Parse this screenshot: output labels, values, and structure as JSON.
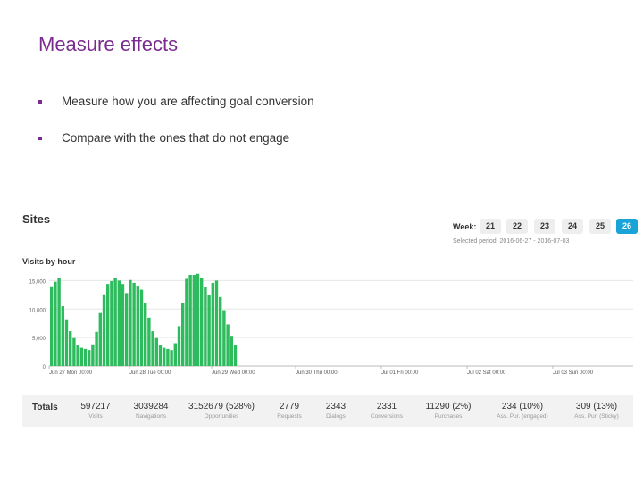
{
  "slide": {
    "title": "Measure effects",
    "bullets": [
      "Measure how you are affecting goal conversion",
      "Compare with the ones that do not engage"
    ]
  },
  "dashboard": {
    "title": "Sites",
    "week_label": "Week:",
    "weeks": [
      "21",
      "22",
      "23",
      "24",
      "25",
      "26"
    ],
    "active_week": "26",
    "selected_period": "Selected period: 2016-06-27 - 2016-07-03",
    "chart_title": "Visits by hour",
    "accent_color": "#1aa3d6",
    "bar_color": "#2dbb5d",
    "totals_label": "Totals",
    "totals": [
      {
        "value": "597217",
        "label": "Visits"
      },
      {
        "value": "3039284",
        "label": "Navigations"
      },
      {
        "value": "3152679 (528%)",
        "label": "Opportunities"
      },
      {
        "value": "2779",
        "label": "Requests"
      },
      {
        "value": "2343",
        "label": "Dialogs"
      },
      {
        "value": "2331",
        "label": "Conversions"
      },
      {
        "value": "11290 (2%)",
        "label": "Purchases"
      },
      {
        "value": "234 (10%)",
        "label": "Ass. Pur. (engaged)"
      },
      {
        "value": "309 (13%)",
        "label": "Ass. Pur. (Sticky)"
      }
    ]
  },
  "chart_data": {
    "type": "bar",
    "title": "Visits by hour",
    "y_ticks": [
      "0",
      "5,000",
      "10,000",
      "15,000"
    ],
    "ylim": [
      0,
      16000
    ],
    "x_ticks": [
      "Jun 27 Mon 00:00",
      "Jun 28 Tue 00:00",
      "Jun 29 Wed 00:00",
      "Jun 30 Thu 00:00",
      "Jul 01 Fri 00:00",
      "Jul 02 Sat 00:00",
      "Jul 03 Sun 00:00"
    ],
    "values": [
      14000,
      14800,
      15500,
      10500,
      8200,
      6100,
      4900,
      3600,
      3200,
      3000,
      2800,
      3800,
      6000,
      9300,
      12600,
      14400,
      14900,
      15500,
      15000,
      14400,
      12800,
      15100,
      14600,
      14100,
      13400,
      11000,
      8500,
      6100,
      4900,
      3600,
      3200,
      3000,
      2800,
      4000,
      7000,
      11000,
      15300,
      16000,
      16000,
      16200,
      15500,
      13800,
      12400,
      14600,
      15000,
      12100,
      9800,
      7300,
      5300,
      3600
    ]
  }
}
